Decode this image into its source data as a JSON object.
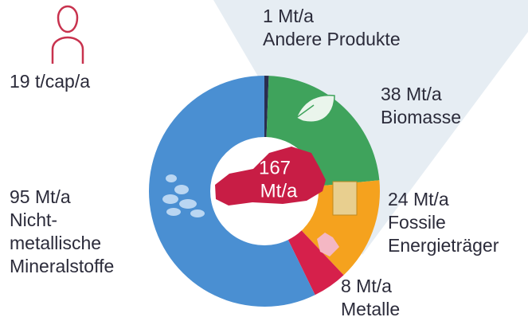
{
  "chart_data": {
    "type": "donut",
    "annotation": "19 t/cap/a",
    "center_text": [
      "167",
      "Mt/a"
    ],
    "categories": [
      "Andere Produkte",
      "Biomasse",
      "Fossile\nEnergieträger",
      "Metalle",
      "Nicht-\nmetallische\nMineralstoffe"
    ],
    "values": [
      1,
      38,
      24,
      8,
      95
    ],
    "value_labels": [
      "1 Mt/a",
      "38 Mt/a",
      "24 Mt/a",
      "8 Mt/a",
      "95 Mt/a"
    ],
    "colors": [
      "#2b2d4e",
      "#3fa35c",
      "#f5a21e",
      "#d6204b",
      "#4a8fd2"
    ]
  }
}
